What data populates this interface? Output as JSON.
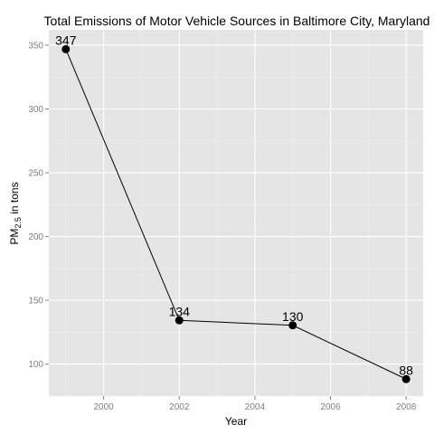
{
  "chart_data": {
    "type": "line",
    "title": "Total Emissions of Motor Vehicle Sources in Baltimore City, Maryland",
    "xlabel": "Year",
    "ylabel": {
      "prefix": "PM",
      "subscript": "2.5",
      "suffix": " in tons"
    },
    "x": [
      1999,
      2002,
      2005,
      2008
    ],
    "values": [
      346.82,
      134.31,
      130.43,
      88.28
    ],
    "data_labels": [
      "347",
      "134",
      "130",
      "88"
    ],
    "xlim": [
      1998.55,
      2008.45
    ],
    "ylim": [
      75,
      362
    ],
    "x_ticks": [
      2000,
      2002,
      2004,
      2006,
      2008
    ],
    "x_tick_labels": [
      "2000",
      "2002",
      "2004",
      "2006",
      "2008"
    ],
    "y_ticks": [
      100,
      150,
      200,
      250,
      300,
      350
    ],
    "y_tick_labels": [
      "100",
      "150",
      "200",
      "250",
      "300",
      "350"
    ],
    "grid": true,
    "legend": "none",
    "colors": {
      "panel_background": "#e5e5e5",
      "grid_major": "#ffffff",
      "grid_minor": "#f2f2f2",
      "line": "#000000",
      "point": "#000000",
      "tick_label": "#7f7f7f"
    }
  }
}
